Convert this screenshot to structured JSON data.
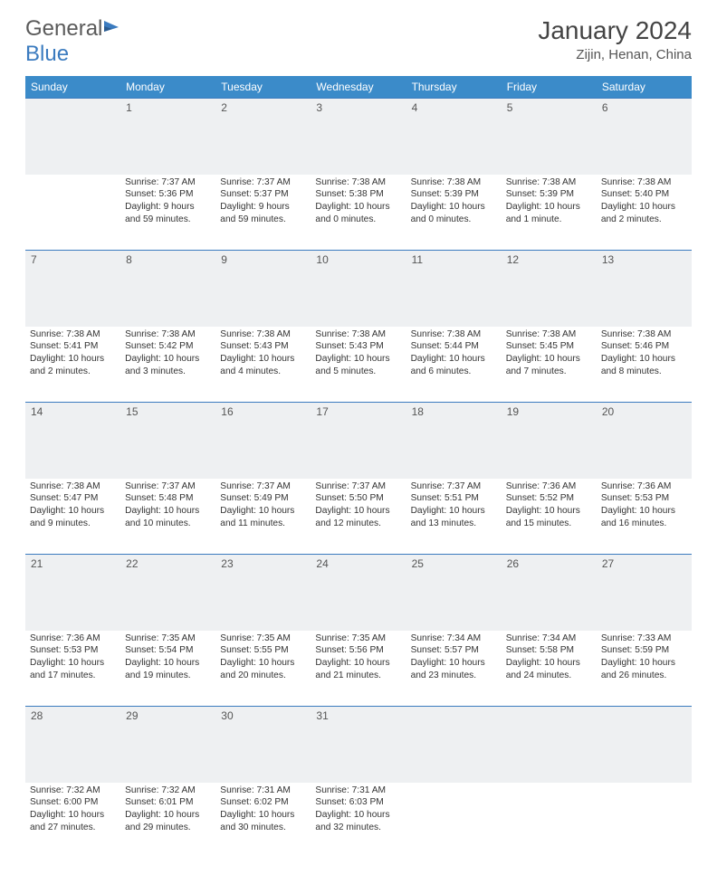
{
  "brand": {
    "part1": "General",
    "part2": "Blue"
  },
  "title": "January 2024",
  "location": "Zijin, Henan, China",
  "colors": {
    "header_bg": "#3b8bc9",
    "rule": "#3b7bbf",
    "daynum_bg": "#eef0f2",
    "text": "#333"
  },
  "weekdays": [
    "Sunday",
    "Monday",
    "Tuesday",
    "Wednesday",
    "Thursday",
    "Friday",
    "Saturday"
  ],
  "weeks": [
    [
      null,
      {
        "n": "1",
        "sr": "Sunrise: 7:37 AM",
        "ss": "Sunset: 5:36 PM",
        "d1": "Daylight: 9 hours",
        "d2": "and 59 minutes."
      },
      {
        "n": "2",
        "sr": "Sunrise: 7:37 AM",
        "ss": "Sunset: 5:37 PM",
        "d1": "Daylight: 9 hours",
        "d2": "and 59 minutes."
      },
      {
        "n": "3",
        "sr": "Sunrise: 7:38 AM",
        "ss": "Sunset: 5:38 PM",
        "d1": "Daylight: 10 hours",
        "d2": "and 0 minutes."
      },
      {
        "n": "4",
        "sr": "Sunrise: 7:38 AM",
        "ss": "Sunset: 5:39 PM",
        "d1": "Daylight: 10 hours",
        "d2": "and 0 minutes."
      },
      {
        "n": "5",
        "sr": "Sunrise: 7:38 AM",
        "ss": "Sunset: 5:39 PM",
        "d1": "Daylight: 10 hours",
        "d2": "and 1 minute."
      },
      {
        "n": "6",
        "sr": "Sunrise: 7:38 AM",
        "ss": "Sunset: 5:40 PM",
        "d1": "Daylight: 10 hours",
        "d2": "and 2 minutes."
      }
    ],
    [
      {
        "n": "7",
        "sr": "Sunrise: 7:38 AM",
        "ss": "Sunset: 5:41 PM",
        "d1": "Daylight: 10 hours",
        "d2": "and 2 minutes."
      },
      {
        "n": "8",
        "sr": "Sunrise: 7:38 AM",
        "ss": "Sunset: 5:42 PM",
        "d1": "Daylight: 10 hours",
        "d2": "and 3 minutes."
      },
      {
        "n": "9",
        "sr": "Sunrise: 7:38 AM",
        "ss": "Sunset: 5:43 PM",
        "d1": "Daylight: 10 hours",
        "d2": "and 4 minutes."
      },
      {
        "n": "10",
        "sr": "Sunrise: 7:38 AM",
        "ss": "Sunset: 5:43 PM",
        "d1": "Daylight: 10 hours",
        "d2": "and 5 minutes."
      },
      {
        "n": "11",
        "sr": "Sunrise: 7:38 AM",
        "ss": "Sunset: 5:44 PM",
        "d1": "Daylight: 10 hours",
        "d2": "and 6 minutes."
      },
      {
        "n": "12",
        "sr": "Sunrise: 7:38 AM",
        "ss": "Sunset: 5:45 PM",
        "d1": "Daylight: 10 hours",
        "d2": "and 7 minutes."
      },
      {
        "n": "13",
        "sr": "Sunrise: 7:38 AM",
        "ss": "Sunset: 5:46 PM",
        "d1": "Daylight: 10 hours",
        "d2": "and 8 minutes."
      }
    ],
    [
      {
        "n": "14",
        "sr": "Sunrise: 7:38 AM",
        "ss": "Sunset: 5:47 PM",
        "d1": "Daylight: 10 hours",
        "d2": "and 9 minutes."
      },
      {
        "n": "15",
        "sr": "Sunrise: 7:37 AM",
        "ss": "Sunset: 5:48 PM",
        "d1": "Daylight: 10 hours",
        "d2": "and 10 minutes."
      },
      {
        "n": "16",
        "sr": "Sunrise: 7:37 AM",
        "ss": "Sunset: 5:49 PM",
        "d1": "Daylight: 10 hours",
        "d2": "and 11 minutes."
      },
      {
        "n": "17",
        "sr": "Sunrise: 7:37 AM",
        "ss": "Sunset: 5:50 PM",
        "d1": "Daylight: 10 hours",
        "d2": "and 12 minutes."
      },
      {
        "n": "18",
        "sr": "Sunrise: 7:37 AM",
        "ss": "Sunset: 5:51 PM",
        "d1": "Daylight: 10 hours",
        "d2": "and 13 minutes."
      },
      {
        "n": "19",
        "sr": "Sunrise: 7:36 AM",
        "ss": "Sunset: 5:52 PM",
        "d1": "Daylight: 10 hours",
        "d2": "and 15 minutes."
      },
      {
        "n": "20",
        "sr": "Sunrise: 7:36 AM",
        "ss": "Sunset: 5:53 PM",
        "d1": "Daylight: 10 hours",
        "d2": "and 16 minutes."
      }
    ],
    [
      {
        "n": "21",
        "sr": "Sunrise: 7:36 AM",
        "ss": "Sunset: 5:53 PM",
        "d1": "Daylight: 10 hours",
        "d2": "and 17 minutes."
      },
      {
        "n": "22",
        "sr": "Sunrise: 7:35 AM",
        "ss": "Sunset: 5:54 PM",
        "d1": "Daylight: 10 hours",
        "d2": "and 19 minutes."
      },
      {
        "n": "23",
        "sr": "Sunrise: 7:35 AM",
        "ss": "Sunset: 5:55 PM",
        "d1": "Daylight: 10 hours",
        "d2": "and 20 minutes."
      },
      {
        "n": "24",
        "sr": "Sunrise: 7:35 AM",
        "ss": "Sunset: 5:56 PM",
        "d1": "Daylight: 10 hours",
        "d2": "and 21 minutes."
      },
      {
        "n": "25",
        "sr": "Sunrise: 7:34 AM",
        "ss": "Sunset: 5:57 PM",
        "d1": "Daylight: 10 hours",
        "d2": "and 23 minutes."
      },
      {
        "n": "26",
        "sr": "Sunrise: 7:34 AM",
        "ss": "Sunset: 5:58 PM",
        "d1": "Daylight: 10 hours",
        "d2": "and 24 minutes."
      },
      {
        "n": "27",
        "sr": "Sunrise: 7:33 AM",
        "ss": "Sunset: 5:59 PM",
        "d1": "Daylight: 10 hours",
        "d2": "and 26 minutes."
      }
    ],
    [
      {
        "n": "28",
        "sr": "Sunrise: 7:32 AM",
        "ss": "Sunset: 6:00 PM",
        "d1": "Daylight: 10 hours",
        "d2": "and 27 minutes."
      },
      {
        "n": "29",
        "sr": "Sunrise: 7:32 AM",
        "ss": "Sunset: 6:01 PM",
        "d1": "Daylight: 10 hours",
        "d2": "and 29 minutes."
      },
      {
        "n": "30",
        "sr": "Sunrise: 7:31 AM",
        "ss": "Sunset: 6:02 PM",
        "d1": "Daylight: 10 hours",
        "d2": "and 30 minutes."
      },
      {
        "n": "31",
        "sr": "Sunrise: 7:31 AM",
        "ss": "Sunset: 6:03 PM",
        "d1": "Daylight: 10 hours",
        "d2": "and 32 minutes."
      },
      null,
      null,
      null
    ]
  ]
}
